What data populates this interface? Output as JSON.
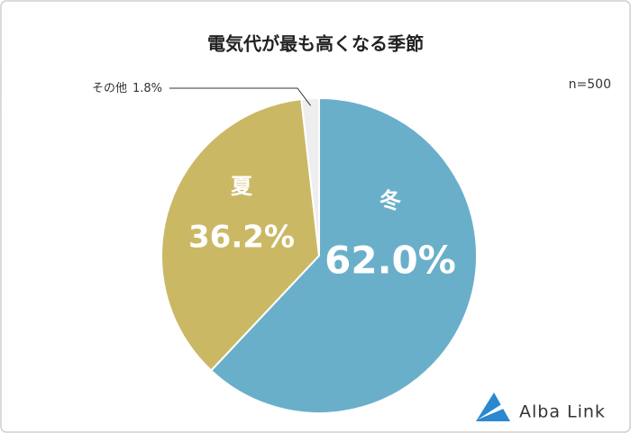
{
  "chart_data": {
    "type": "pie",
    "title": "電気代が最も高くなる季節",
    "note": "n=500",
    "categories": [
      "冬",
      "夏",
      "その他"
    ],
    "values": [
      62.0,
      36.2,
      1.8
    ],
    "value_labels": [
      "62.0%",
      "36.2%",
      "1.8%"
    ],
    "colors": [
      "#6aafca",
      "#cbb865",
      "#eeeeee"
    ]
  },
  "brand": "Alba Link"
}
